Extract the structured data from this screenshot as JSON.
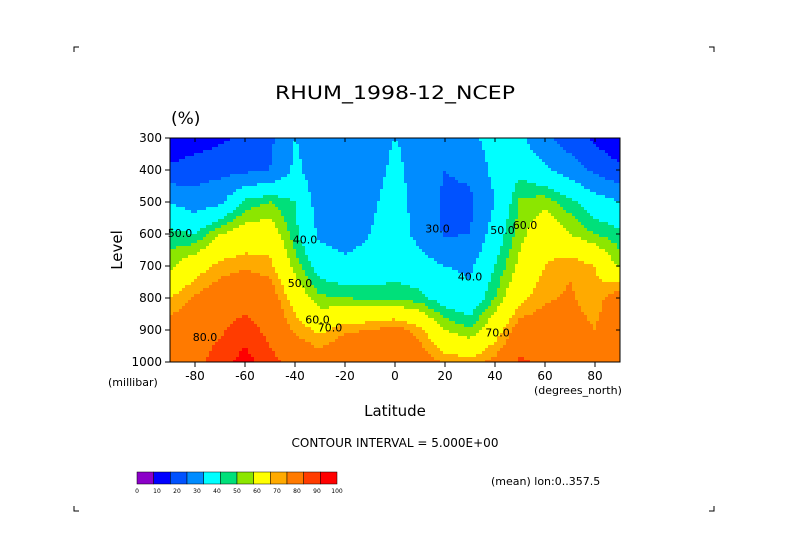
{
  "chart_data": {
    "type": "contour",
    "title": "RHUM_1998-12_NCEP",
    "units_label": "(%)",
    "xlabel": "Latitude",
    "ylabel": "Level",
    "x_units_label": "(degrees_north)",
    "y_units_label": "(millibar)",
    "xlim": [
      -90,
      90
    ],
    "ylim": [
      1000,
      300
    ],
    "x_ticks": [
      -80,
      -60,
      -40,
      -20,
      0,
      20,
      40,
      60,
      80
    ],
    "x_tick_labels": [
      "-80",
      "-60",
      "-40",
      "-20",
      "0",
      "20",
      "40",
      "60",
      "80"
    ],
    "y_ticks": [
      300,
      400,
      500,
      600,
      700,
      800,
      900,
      1000
    ],
    "y_tick_labels": [
      "300",
      "400",
      "500",
      "600",
      "700",
      "800",
      "900",
      "1000"
    ],
    "contour_interval_text": "CONTOUR INTERVAL = 5.000E+00",
    "footer_note": "(mean) lon:0..357.5",
    "contour_labels": [
      {
        "text": "50.0",
        "lat": -86,
        "level": 610
      },
      {
        "text": "40.0",
        "lat": -36,
        "level": 630
      },
      {
        "text": "50.0",
        "lat": -38,
        "level": 765
      },
      {
        "text": "60.0",
        "lat": -31,
        "level": 880
      },
      {
        "text": "70.0",
        "lat": -26,
        "level": 905
      },
      {
        "text": "80.0",
        "lat": -76,
        "level": 935
      },
      {
        "text": "30.0",
        "lat": 17,
        "level": 595
      },
      {
        "text": "40.0",
        "lat": 30,
        "level": 745
      },
      {
        "text": "50.0",
        "lat": 43,
        "level": 600
      },
      {
        "text": "60.0",
        "lat": 52,
        "level": 585
      },
      {
        "text": "70.0",
        "lat": 41,
        "level": 920
      }
    ],
    "colorbar": {
      "colors": [
        "#8b00c8",
        "#0000ff",
        "#0052ff",
        "#008cff",
        "#00ffff",
        "#00e07a",
        "#8ce600",
        "#ffff00",
        "#ffaa00",
        "#ff7a00",
        "#ff3c00",
        "#ff0000"
      ],
      "ticks": [
        "0",
        "10",
        "20",
        "30",
        "40",
        "50",
        "60",
        "70",
        "80",
        "90",
        "100"
      ]
    },
    "humidity_samples": {
      "latitudes": [
        -90,
        -80,
        -70,
        -60,
        -50,
        -40,
        -30,
        -20,
        -10,
        0,
        10,
        20,
        30,
        40,
        50,
        60,
        70,
        80,
        90
      ],
      "levels": [
        300,
        400,
        500,
        600,
        700,
        800,
        900,
        1000
      ],
      "values": [
        [
          12,
          15,
          18,
          22,
          28,
          40,
          38,
          35,
          37,
          40,
          38,
          35,
          37,
          45,
          42,
          32,
          25,
          18,
          12
        ],
        [
          22,
          25,
          27,
          28,
          30,
          42,
          34,
          32,
          36,
          42,
          36,
          30,
          32,
          43,
          48,
          42,
          35,
          28,
          22
        ],
        [
          40,
          35,
          38,
          52,
          55,
          50,
          35,
          31,
          38,
          44,
          36,
          28,
          28,
          40,
          56,
          58,
          52,
          45,
          40
        ],
        [
          52,
          50,
          60,
          64,
          65,
          52,
          38,
          35,
          40,
          45,
          37,
          29,
          30,
          45,
          58,
          66,
          60,
          55,
          52
        ],
        [
          58,
          66,
          72,
          74,
          72,
          58,
          46,
          43,
          44,
          46,
          44,
          40,
          38,
          50,
          62,
          70,
          74,
          70,
          58
        ],
        [
          70,
          76,
          80,
          82,
          80,
          66,
          56,
          55,
          54,
          54,
          52,
          46,
          43,
          55,
          68,
          74,
          76,
          72,
          80
        ],
        [
          79,
          82,
          84,
          88,
          83,
          74,
          68,
          74,
          75,
          78,
          72,
          60,
          56,
          66,
          79,
          80,
          78,
          75,
          82
        ],
        [
          84,
          83,
          88,
          92,
          87,
          83,
          80,
          84,
          82,
          85,
          80,
          74,
          72,
          77,
          86,
          84,
          80,
          78,
          84
        ]
      ]
    }
  }
}
